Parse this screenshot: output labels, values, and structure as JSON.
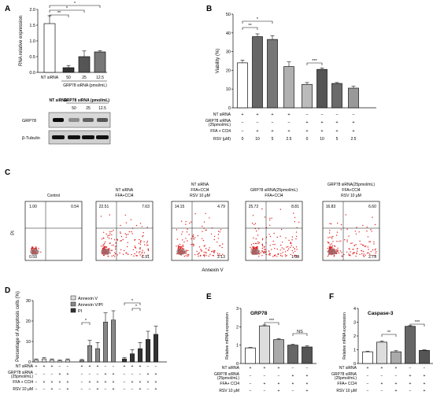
{
  "panels": {
    "A": "A",
    "B": "B",
    "C": "C",
    "D": "D",
    "E": "E",
    "F": "F"
  },
  "panelA": {
    "ylabel": "RNA relative expression",
    "xlabel": "GRP78 siRNA (pmol/mL)",
    "sig": [
      "**",
      "*",
      "*"
    ],
    "blot": {
      "header_nt": "NT siRNA",
      "header_grp": "GRP78 siRNA (pmol/mL)",
      "doses": [
        "50",
        "25",
        "12.5"
      ],
      "rows": [
        "GRP78",
        "β-Tubulin"
      ]
    }
  },
  "panelB": {
    "ylabel": "Viability (%)",
    "sig": [
      "**",
      "*",
      "***"
    ],
    "row_labels": [
      "NT siRNA",
      "GRP78 siRNA",
      "(25pmol/mL)",
      "FFA + CCl4",
      "RSV (μM)"
    ],
    "signs": {
      "nt": [
        "+",
        "+",
        "+",
        "+",
        "−",
        "−",
        "−",
        "−"
      ],
      "grp": [
        "−",
        "−",
        "−",
        "−",
        "+",
        "+",
        "+",
        "+"
      ],
      "ffa": [
        "−",
        "+",
        "+",
        "+",
        "+",
        "+",
        "+",
        "+"
      ]
    },
    "rsv": [
      "0",
      "10",
      "5",
      "2.5",
      "0",
      "10",
      "5",
      "2.5"
    ]
  },
  "panelC": {
    "ylabel": "PI",
    "xlabel": "Annexin V",
    "plots": [
      {
        "title": [
          "Control"
        ],
        "q": [
          "1.00",
          "0.54",
          "0.59",
          ""
        ]
      },
      {
        "title": [
          "NT siRNA",
          "FFA+CCl4"
        ],
        "q": [
          "22.51",
          "7.63",
          "",
          "1.91"
        ]
      },
      {
        "title": [
          "NT siRNA",
          "FFA+CCl4",
          "RSV 10 μM"
        ],
        "q": [
          "14.15",
          "4.79",
          "",
          "2.13"
        ]
      },
      {
        "title": [
          "GRP78 siRNA(25pmol/mL)",
          "FFA+CCl4"
        ],
        "q": [
          "25.72",
          "8.81",
          "",
          "1.98"
        ]
      },
      {
        "title": [
          "GRP78 siRNA(25pmol/mL)",
          "FFA+CCl4",
          "RSV 10 μM"
        ],
        "q": [
          "16.83",
          "6.60",
          "",
          "2.79"
        ]
      }
    ]
  },
  "panelD": {
    "ylabel": "Percentage of Apoptosis cells (%)",
    "legend": [
      "Annexin V",
      "Annexin V/PI",
      "PI"
    ],
    "row_labels": [
      "NT siRNA",
      "GRP78 siRNA",
      "(25pmol/mL)",
      "FFA + CCl4",
      "RSV 10 μM"
    ],
    "sig": [
      "*",
      "*",
      "*"
    ]
  },
  "panelE": {
    "title": "GRP78",
    "ylabel": "Relative mRNA expression",
    "sig": [
      "***",
      "NS"
    ],
    "row_labels": [
      "NT siRNA",
      "GRP78 siRNA",
      "(25pmol/mL)",
      "FFA+ CCl4",
      "RSV 10 μM"
    ],
    "signs": {
      "nt": [
        "+",
        "+",
        "+",
        "−",
        "−"
      ],
      "grp": [
        "−",
        "−",
        "−",
        "+",
        "+"
      ],
      "ffa": [
        "−",
        "+",
        "+",
        "+",
        "+"
      ],
      "rsv": [
        "−",
        "−",
        "+",
        "−",
        "+"
      ]
    }
  },
  "panelF": {
    "title": "Caspase-3",
    "ylabel": "Relative mRNA expression",
    "sig": [
      "**",
      "***"
    ],
    "row_labels": [
      "NT siRNA",
      "GRP78 siRNA",
      "(25pmol/mL)",
      "FFA+ CCl4",
      "RSV 10 μM"
    ],
    "signs": {
      "nt": [
        "+",
        "+",
        "+",
        "−",
        "−"
      ],
      "grp": [
        "−",
        "−",
        "−",
        "+",
        "+"
      ],
      "ffa": [
        "−",
        "+",
        "+",
        "+",
        "+"
      ],
      "rsv": [
        "−",
        "−",
        "+",
        "−",
        "+"
      ]
    }
  },
  "chart_data": [
    {
      "type": "bar",
      "panel": "A",
      "categories": [
        "NT siRNA",
        "50",
        "25",
        "12.5"
      ],
      "values": [
        1.55,
        0.15,
        0.5,
        0.65
      ],
      "errors": [
        0.25,
        0.07,
        0.18,
        0.04
      ],
      "ylim": [
        0,
        2.0
      ],
      "yticks": [
        "0.0",
        "0.5",
        "1.0",
        "1.5",
        "2.0"
      ],
      "ylabel": "RNA relative expression",
      "xlabel": "GRP78 siRNA (pmol/mL)"
    },
    {
      "type": "bar",
      "panel": "B",
      "values": [
        24,
        38,
        36.5,
        22,
        12.5,
        20.5,
        13,
        10.5
      ],
      "errors": [
        1.5,
        1.5,
        2.0,
        2.5,
        1.0,
        0.8,
        0.5,
        1.0
      ],
      "colors": [
        "#ffffff",
        "#666666",
        "#777777",
        "#b0b0b0",
        "#bbbbbb",
        "#555555",
        "#6a6a6a",
        "#999999"
      ],
      "ylim": [
        0,
        50
      ],
      "yticks": [
        "0",
        "10",
        "20",
        "30",
        "40",
        "50"
      ],
      "ylabel": "Viability (%)"
    },
    {
      "type": "bar",
      "panel": "D",
      "groups": 5,
      "series": [
        {
          "name": "Annexin V",
          "values": [
            1.0,
            1.5,
            1.0,
            0.5,
            1.0
          ],
          "errors": [
            0.5,
            0.6,
            0.5,
            0.4,
            0.5
          ]
        },
        {
          "name": "Annexin V/PI",
          "values": [
            0.8,
            8.0,
            6.5,
            19.5,
            20.5
          ],
          "errors": [
            0.4,
            2.5,
            3.0,
            4.5,
            4.5
          ]
        },
        {
          "name": "PI",
          "values": [
            1.5,
            4.0,
            6.5,
            11.0,
            13.5
          ],
          "errors": [
            0.6,
            2.0,
            3.0,
            4.0,
            4.0
          ]
        }
      ],
      "ylim": [
        0,
        30
      ],
      "yticks": [
        "0",
        "10",
        "20",
        "30"
      ],
      "ylabel": "Percentage of Apoptosis cells (%)"
    },
    {
      "type": "bar",
      "panel": "E",
      "title": "GRP78",
      "values": [
        0.85,
        2.05,
        1.3,
        1.0,
        0.9
      ],
      "errors": [
        0.03,
        0.05,
        0.06,
        0.04,
        0.07
      ],
      "colors": [
        "#ffffff",
        "#dddddd",
        "#aaaaaa",
        "#666666",
        "#555555"
      ],
      "ylim": [
        0,
        3
      ],
      "yticks": [
        "0",
        "1",
        "2",
        "3"
      ],
      "ylabel": "Relative mRNA expression"
    },
    {
      "type": "bar",
      "panel": "F",
      "title": "Caspase-3",
      "values": [
        0.85,
        1.55,
        0.85,
        2.7,
        0.95
      ],
      "errors": [
        0.04,
        0.08,
        0.08,
        0.05,
        0.04
      ],
      "colors": [
        "#ffffff",
        "#dddddd",
        "#aaaaaa",
        "#666666",
        "#555555"
      ],
      "ylim": [
        0,
        4
      ],
      "yticks": [
        "0",
        "1",
        "2",
        "3",
        "4"
      ],
      "ylabel": "Relative mRNA expression"
    }
  ]
}
